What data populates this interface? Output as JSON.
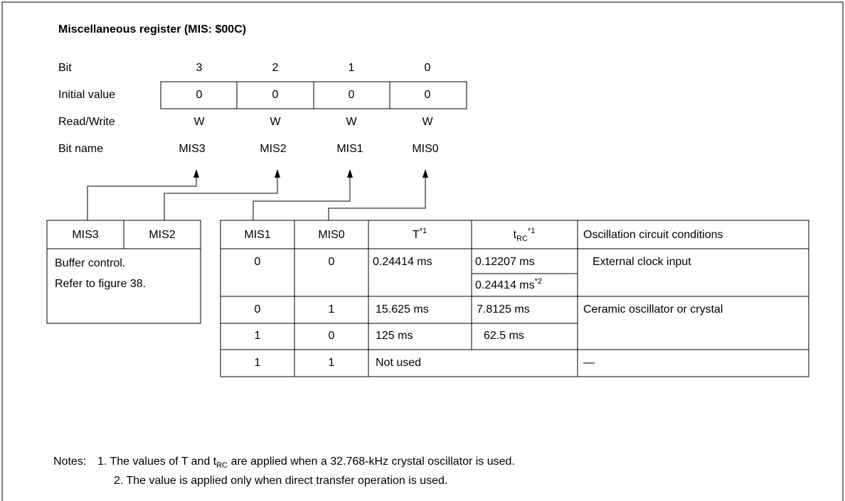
{
  "title": "Miscellaneous register (MIS:  $00C)",
  "register": {
    "row_labels": [
      "Bit",
      "Initial value",
      "Read/Write",
      "Bit name"
    ],
    "bits": [
      "3",
      "2",
      "1",
      "0"
    ],
    "initial_values": [
      "0",
      "0",
      "0",
      "0"
    ],
    "read_write": [
      "W",
      "W",
      "W",
      "W"
    ],
    "bit_names": [
      "MIS3",
      "MIS2",
      "MIS1",
      "MIS0"
    ]
  },
  "left_table": {
    "headers": [
      "MIS3",
      "MIS2"
    ],
    "description": [
      "Buffer control.",
      "Refer to figure 38."
    ]
  },
  "right_table": {
    "headers": [
      {
        "text": "MIS1"
      },
      {
        "text": "MIS0"
      },
      {
        "text": "T",
        "sup": "*1"
      },
      {
        "text": "t",
        "sub": "RC",
        "sup": "*1"
      },
      {
        "text": "Oscillation circuit conditions"
      }
    ],
    "rows": [
      {
        "mis1": "0",
        "mis0": "0",
        "t": "0.24414 ms",
        "trc": [
          "0.12207 ms",
          {
            "text": "0.24414 ms",
            "sup": "*2"
          }
        ],
        "condition": "External clock input"
      },
      {
        "mis1": "0",
        "mis0": "1",
        "t": "15.625 ms",
        "trc": [
          "7.8125 ms"
        ],
        "condition": "Ceramic oscillator or crystal"
      },
      {
        "mis1": "1",
        "mis0": "0",
        "t": "125 ms",
        "trc": [
          "62.5 ms"
        ]
      },
      {
        "mis1": "1",
        "mis0": "1",
        "t": "Not used",
        "condition": "—"
      }
    ]
  },
  "notes": {
    "label": "Notes:",
    "items": [
      {
        "text": "1. The values of T and t",
        "sub": "RC",
        "rest": " are applied when a 32.768-kHz crystal oscillator is used."
      },
      {
        "text": "2. The value is applied only when direct transfer operation is used."
      }
    ]
  }
}
